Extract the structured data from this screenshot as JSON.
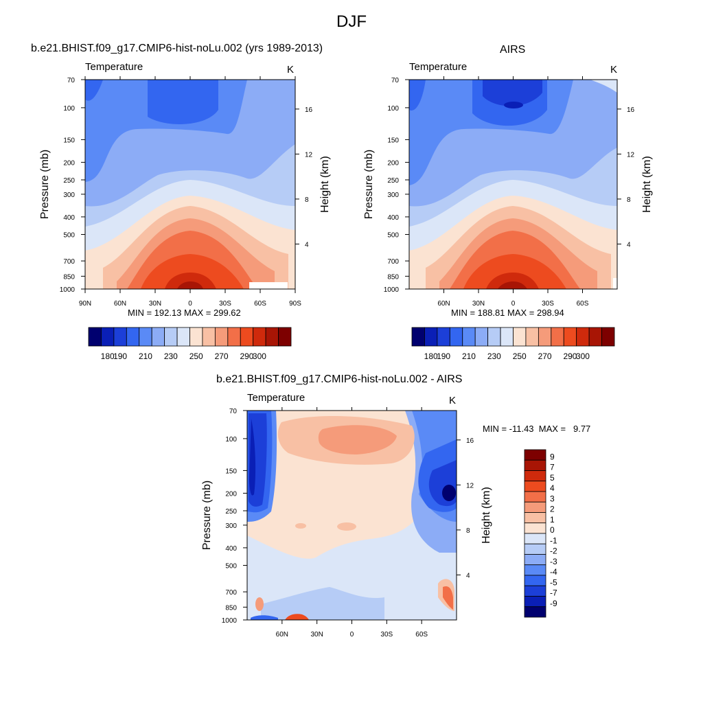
{
  "figure": {
    "title": "DJF",
    "panel_titles": {
      "model": "b.e21.BHIST.f09_g17.CMIP6-hist-noLu.002 (yrs 1989-2013)",
      "obs": "AIRS",
      "diff": "b.e21.BHIST.f09_g17.CMIP6-hist-noLu.002 - AIRS"
    },
    "left_string": "Temperature",
    "right_string": "K"
  },
  "chart_data": [
    {
      "type": "heatmap",
      "title": "b.e21.BHIST.f09_g17.CMIP6-hist-noLu.002 (yrs 1989-2013)",
      "left_label": "Temperature",
      "units": "K",
      "ylabel": "Pressure (mb)",
      "ylabel_right": "Height (km)",
      "y_ticks": [
        70,
        100,
        150,
        200,
        250,
        300,
        400,
        500,
        700,
        850,
        1000
      ],
      "y_right_ticks": [
        4,
        8,
        12,
        16
      ],
      "ylim": [
        1000,
        70
      ],
      "x_ticks": [
        "90N",
        "60N",
        "30N",
        "0",
        "30S",
        "60S",
        "90S"
      ],
      "xlim": [
        90,
        -90
      ],
      "min": "192.13",
      "max": "299.62",
      "min_label": "MIN = 192.13  MAX = 299.62",
      "colorbar": {
        "orientation": "horizontal",
        "levels": [
          180,
          190,
          200,
          210,
          220,
          230,
          240,
          250,
          260,
          270,
          280,
          290,
          300
        ],
        "tick_labels": [
          "180",
          "190",
          "210",
          "230",
          "250",
          "270",
          "290",
          "300"
        ],
        "colors": [
          "#00006f",
          "#0a1fb6",
          "#1c3fd8",
          "#3366f0",
          "#5a8af6",
          "#8cacf6",
          "#b6ccf6",
          "#dbe6f8",
          "#fbe3d2",
          "#f8c0a4",
          "#f59b7a",
          "#f26f48",
          "#ed4b1f",
          "#cf2a0c",
          "#a81505",
          "#7d0000"
        ]
      }
    },
    {
      "type": "heatmap",
      "title": "AIRS",
      "left_label": "Temperature",
      "units": "K",
      "ylabel": "Pressure (mb)",
      "ylabel_right": "Height (km)",
      "y_ticks": [
        70,
        100,
        150,
        200,
        250,
        300,
        400,
        500,
        700,
        850,
        1000
      ],
      "y_right_ticks": [
        4,
        8,
        12,
        16
      ],
      "ylim": [
        1000,
        70
      ],
      "x_ticks": [
        "60N",
        "30N",
        "0",
        "30S",
        "60S"
      ],
      "xlim": [
        90,
        -90
      ],
      "min": "188.81",
      "max": "298.94",
      "min_label": "MIN = 188.81  MAX = 298.94",
      "colorbar": {
        "orientation": "horizontal",
        "levels": [
          180,
          190,
          200,
          210,
          220,
          230,
          240,
          250,
          260,
          270,
          280,
          290,
          300
        ],
        "tick_labels": [
          "180",
          "190",
          "210",
          "230",
          "250",
          "270",
          "290",
          "300"
        ],
        "colors": [
          "#00006f",
          "#0a1fb6",
          "#1c3fd8",
          "#3366f0",
          "#5a8af6",
          "#8cacf6",
          "#b6ccf6",
          "#dbe6f8",
          "#fbe3d2",
          "#f8c0a4",
          "#f59b7a",
          "#f26f48",
          "#ed4b1f",
          "#cf2a0c",
          "#a81505",
          "#7d0000"
        ]
      }
    },
    {
      "type": "heatmap",
      "title": "b.e21.BHIST.f09_g17.CMIP6-hist-noLu.002 - AIRS",
      "left_label": "Temperature",
      "units": "K",
      "ylabel": "Pressure (mb)",
      "ylabel_right": "Height (km)",
      "y_ticks": [
        70,
        100,
        150,
        200,
        250,
        300,
        400,
        500,
        700,
        850,
        1000
      ],
      "y_right_ticks": [
        4,
        8,
        12,
        16
      ],
      "ylim": [
        1000,
        70
      ],
      "x_ticks": [
        "60N",
        "30N",
        "0",
        "30S",
        "60S"
      ],
      "xlim": [
        90,
        -90
      ],
      "min": "-11.43",
      "max": "9.77",
      "min_label": "MIN = -11.43  MAX =   9.77",
      "colorbar": {
        "orientation": "vertical",
        "levels": [
          -9,
          -7,
          -5,
          -4,
          -3,
          -2,
          -1,
          0,
          1,
          2,
          3,
          4,
          5,
          7,
          9
        ],
        "tick_labels": [
          "9",
          "7",
          "5",
          "4",
          "3",
          "2",
          "1",
          "0",
          "-1",
          "-2",
          "-3",
          "-4",
          "-5",
          "-7",
          "-9"
        ],
        "colors": [
          "#00006f",
          "#0a1fb6",
          "#1c3fd8",
          "#3366f0",
          "#5a8af6",
          "#8cacf6",
          "#b6ccf6",
          "#dbe6f8",
          "#fbe3d2",
          "#f8c0a4",
          "#f59b7a",
          "#f26f48",
          "#ed4b1f",
          "#cf2a0c",
          "#a81505",
          "#7d0000"
        ]
      }
    }
  ]
}
